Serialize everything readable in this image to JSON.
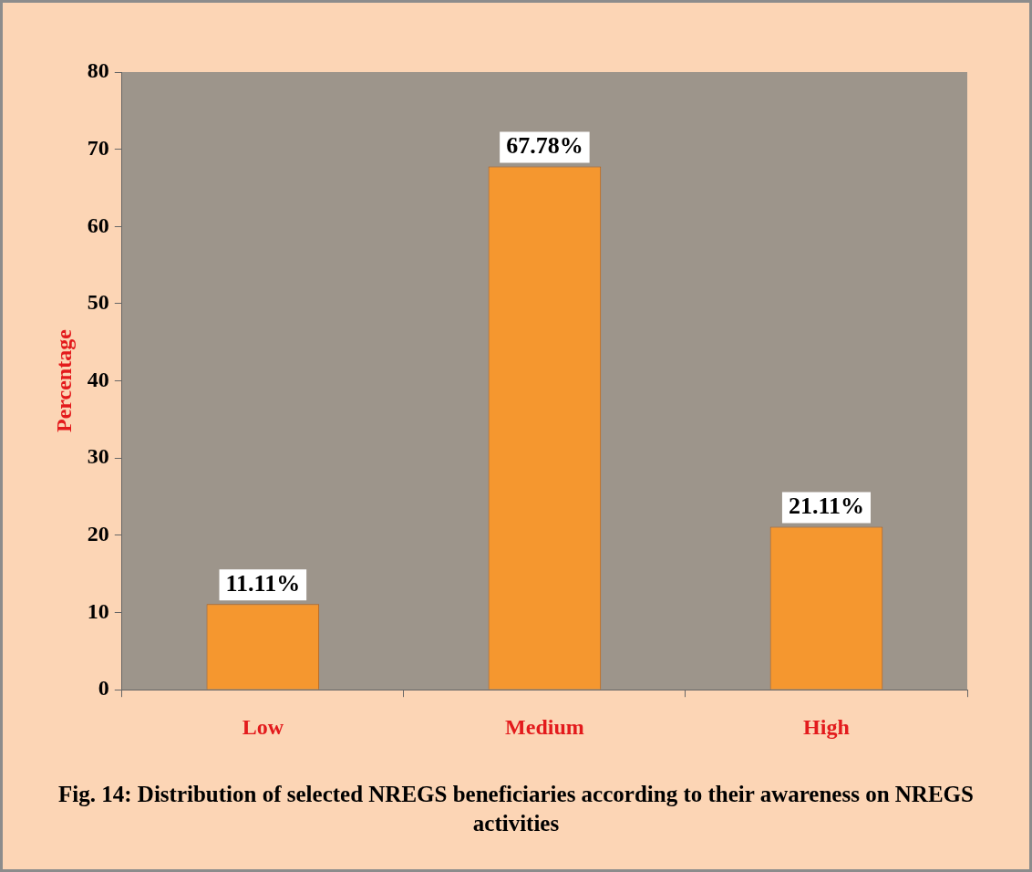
{
  "chart_data": {
    "type": "bar",
    "title": "Fig. 14: Distribution of selected NREGS beneficiaries according to their awareness on NREGS activities",
    "ylabel": "Percentage",
    "categories": [
      "Low",
      "Medium",
      "High"
    ],
    "values": [
      11.11,
      67.78,
      21.11
    ],
    "color": "#f5972f",
    "value_labels": [
      "11.11%",
      "67.78%",
      "21.11%"
    ],
    "ylim": [
      0,
      80
    ],
    "yticks": [
      0,
      10,
      20,
      30,
      40,
      50,
      60,
      70,
      80
    ],
    "grid": false
  }
}
